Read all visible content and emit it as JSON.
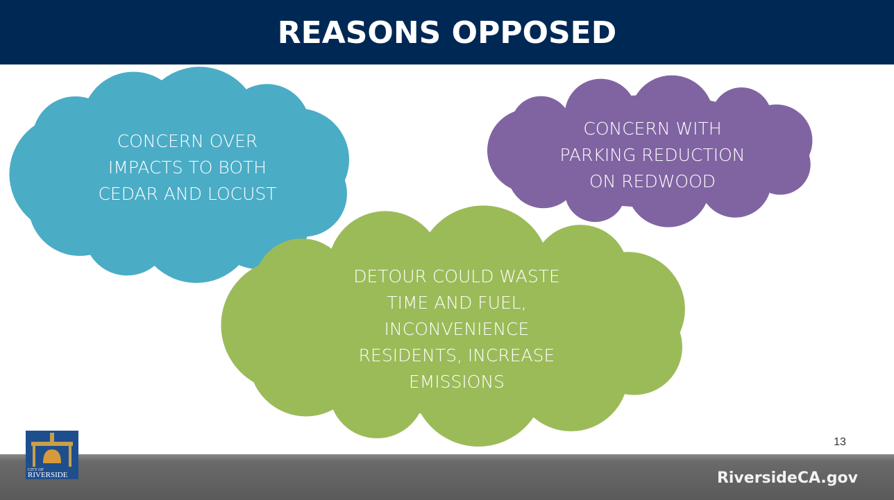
{
  "header": {
    "title": "REASONS OPPOSED"
  },
  "clouds": [
    {
      "lines": [
        "CONCERN OVER",
        "IMPACTS TO BOTH",
        "CEDAR AND LOCUST"
      ]
    },
    {
      "lines": [
        "CONCERN WITH",
        "PARKING REDUCTION",
        "ON REDWOOD"
      ]
    },
    {
      "lines": [
        "DETOUR COULD WASTE",
        "TIME AND FUEL,",
        "INCONVENIENCE",
        "RESIDENTS, INCREASE",
        "EMISSIONS"
      ]
    }
  ],
  "page_number": "13",
  "logo": {
    "line1": "CITY OF",
    "line2": "RIVERSIDE"
  },
  "footer": {
    "website": "RiversideCA.gov"
  }
}
